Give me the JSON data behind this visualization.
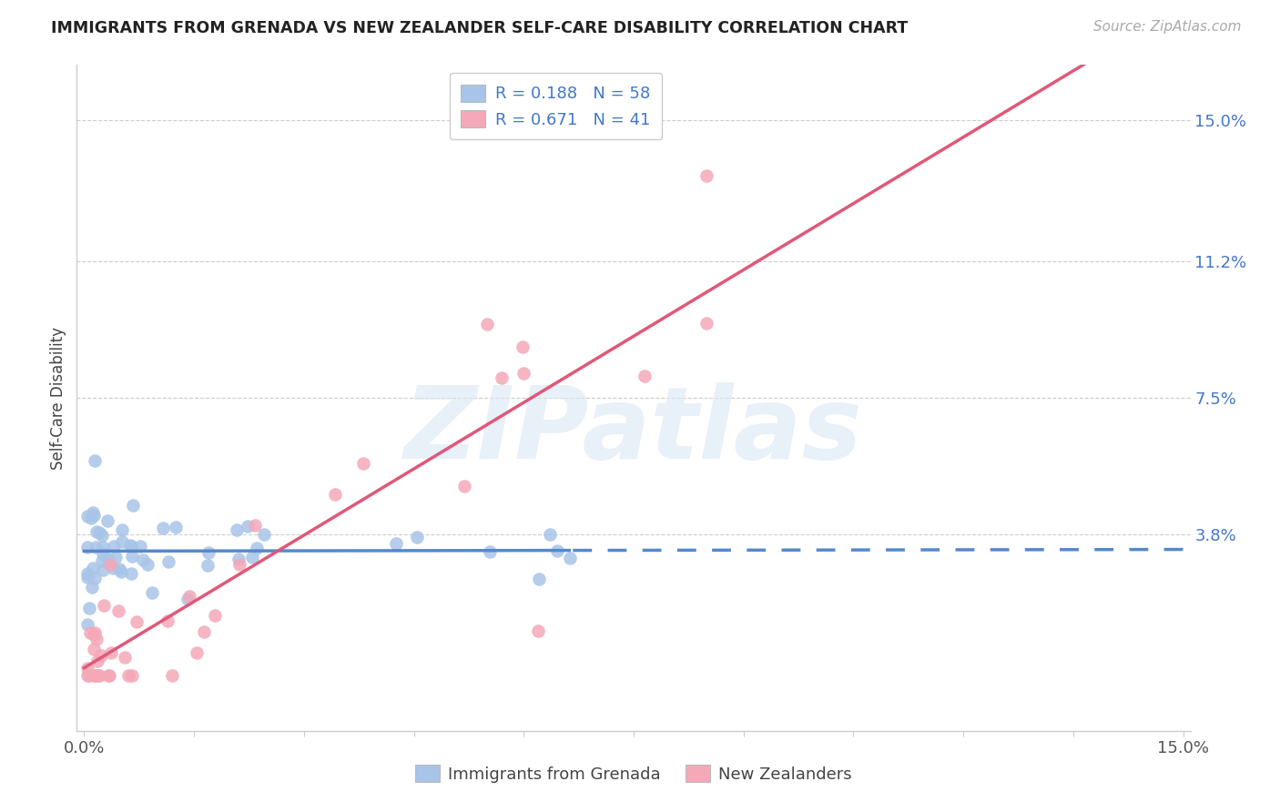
{
  "title": "IMMIGRANTS FROM GRENADA VS NEW ZEALANDER SELF-CARE DISABILITY CORRELATION CHART",
  "source": "Source: ZipAtlas.com",
  "ylabel": "Self-Care Disability",
  "ytick_labels": [
    "15.0%",
    "11.2%",
    "7.5%",
    "3.8%"
  ],
  "ytick_values": [
    0.15,
    0.112,
    0.075,
    0.038
  ],
  "xlim": [
    -0.001,
    0.151
  ],
  "ylim": [
    -0.015,
    0.165
  ],
  "color_blue": "#a8c4e8",
  "color_pink": "#f4a8b8",
  "color_blue_line": "#5588cc",
  "color_pink_line": "#e05878",
  "watermark": "ZIPatlas",
  "legend_text_color": "#4477cc",
  "legend_r_color": "#333333"
}
